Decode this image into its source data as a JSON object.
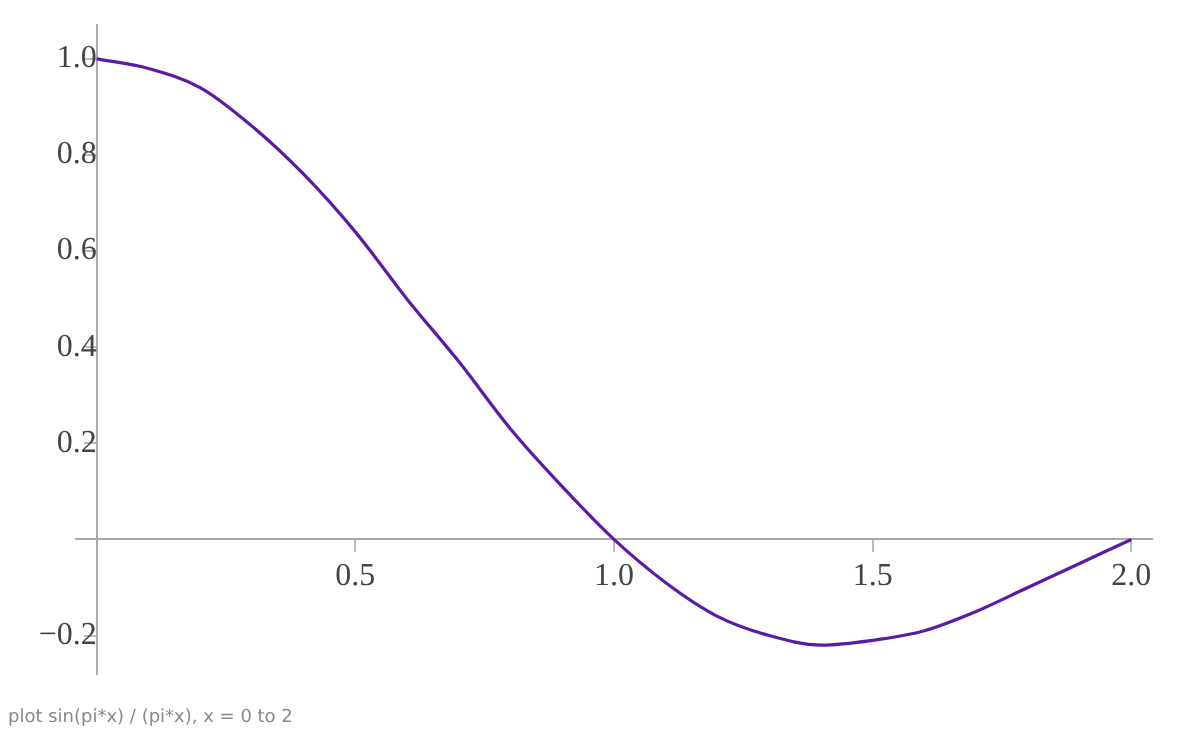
{
  "chart_data": {
    "type": "line",
    "annotations": [
      "plot sin(pi*x) / (pi*x), x = 0 to 2"
    ],
    "x": [
      0,
      0.1,
      0.2,
      0.3,
      0.4,
      0.5,
      0.6,
      0.7,
      0.8,
      0.9,
      1.0,
      1.1,
      1.2,
      1.3,
      1.4,
      1.5,
      1.6,
      1.7,
      1.8,
      1.9,
      2.0
    ],
    "series": [
      {
        "color": "#5b1ba6",
        "values": [
          1,
          0.98,
          0.94,
          0.86,
          0.76,
          0.64,
          0.5,
          0.37,
          0.23,
          0.11,
          0,
          -0.09,
          -0.16,
          -0.2,
          -0.22,
          -0.21,
          -0.19,
          -0.15,
          -0.1,
          -0.05,
          0
        ]
      }
    ],
    "xlim": [
      -0.04,
      2.04
    ],
    "ylim": [
      -0.28,
      1.07
    ],
    "xticks": [
      0.5,
      {
        "value": 1,
        "label": "1.0"
      },
      1.5,
      {
        "value": 2,
        "label": "2.0"
      }
    ],
    "yticks": [
      {
        "value": -0.2,
        "label": "−0.2"
      },
      0.2,
      0.4,
      0.6,
      0.8,
      {
        "value": 1,
        "label": "1.0"
      }
    ],
    "grid": false,
    "legend": false,
    "marker": "none",
    "line_style": "solid"
  }
}
